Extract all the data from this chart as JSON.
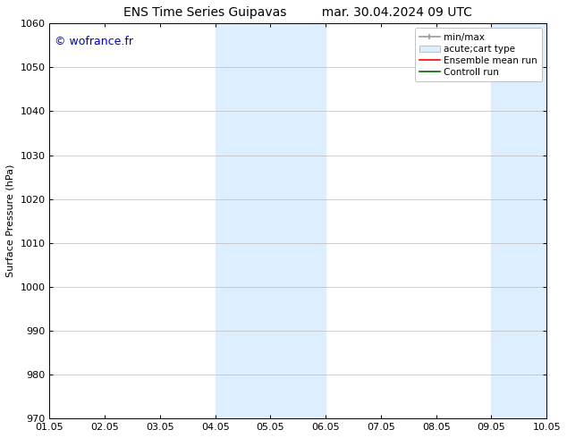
{
  "title": "ENS Time Series Guipavas         mar. 30.04.2024 09 UTC",
  "ylabel": "Surface Pressure (hPa)",
  "ylim": [
    970,
    1060
  ],
  "yticks": [
    970,
    980,
    990,
    1000,
    1010,
    1020,
    1030,
    1040,
    1050,
    1060
  ],
  "xtick_positions": [
    0,
    1,
    2,
    3,
    4,
    5,
    6,
    7,
    8,
    9
  ],
  "xtick_labels": [
    "01.05",
    "02.05",
    "03.05",
    "04.05",
    "05.05",
    "06.05",
    "07.05",
    "08.05",
    "09.05",
    "10.05"
  ],
  "xlim_start": 0,
  "xlim_end": 9,
  "watermark": "© wofrance.fr",
  "watermark_color": "#0000cc",
  "shaded_regions": [
    {
      "xmin": 3.0,
      "xmax": 4.0,
      "color": "#ddeeff"
    },
    {
      "xmin": 4.0,
      "xmax": 5.0,
      "color": "#ddeeff"
    },
    {
      "xmin": 8.0,
      "xmax": 9.0,
      "color": "#ddeeff"
    }
  ],
  "bg_color": "#ffffff",
  "grid_color": "#bbbbbb",
  "font_size": 8,
  "title_fontsize": 10
}
